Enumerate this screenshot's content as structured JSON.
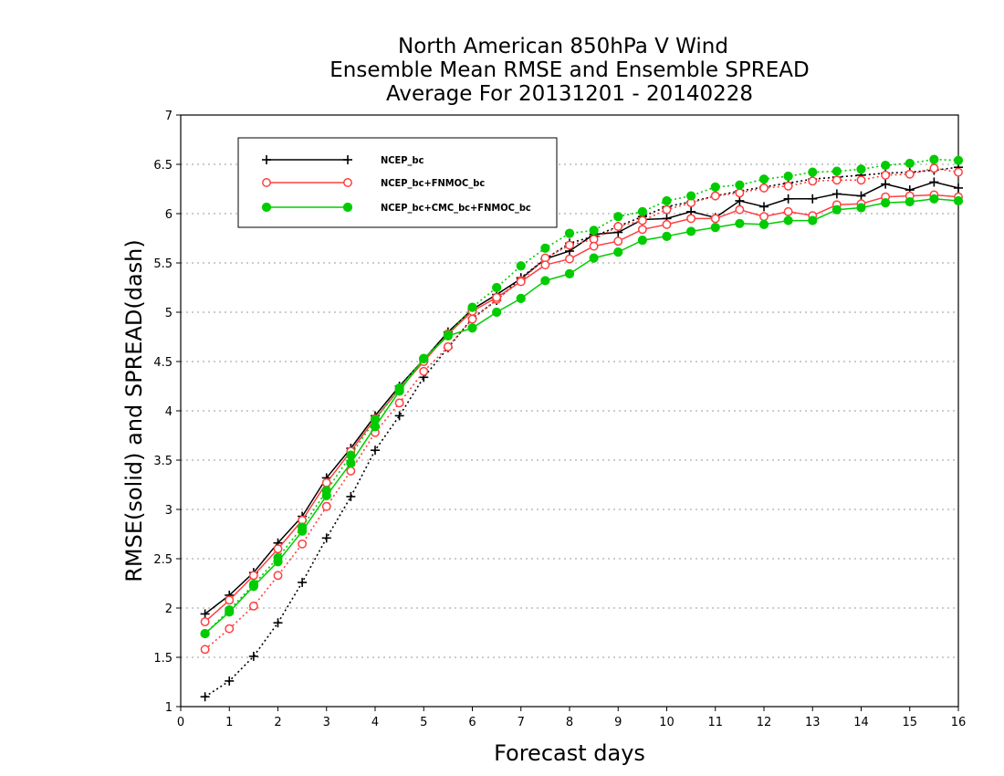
{
  "chart_data": {
    "type": "line",
    "title": [
      "North American 850hPa V Wind",
      "Ensemble Mean RMSE and Ensemble SPREAD",
      "Average For 20131201 - 20140228"
    ],
    "xlabel": "Forecast days",
    "ylabel": "RMSE(solid) and SPREAD(dash)",
    "xlim": [
      0,
      16
    ],
    "ylim": [
      1,
      7
    ],
    "xticks": [
      0,
      1,
      2,
      3,
      4,
      5,
      6,
      7,
      8,
      9,
      10,
      11,
      12,
      13,
      14,
      15,
      16
    ],
    "yticks": [
      1,
      1.5,
      2,
      2.5,
      3,
      3.5,
      4,
      4.5,
      5,
      5.5,
      6,
      6.5,
      7
    ],
    "xtick_labels": [
      "0",
      "1",
      "2",
      "3",
      "4",
      "5",
      "6",
      "7",
      "8",
      "9",
      "10",
      "11",
      "12",
      "13",
      "14",
      "15",
      "16"
    ],
    "ytick_labels": [
      "1",
      "1.5",
      "2",
      "2.5",
      "3",
      "3.5",
      "4",
      "4.5",
      "5",
      "5.5",
      "6",
      "6.5",
      "7"
    ],
    "grid": "horizontal dotted",
    "legend_position": "top-left",
    "x": [
      0.5,
      1,
      1.5,
      2,
      2.5,
      3,
      3.5,
      4,
      4.5,
      5,
      5.5,
      6,
      6.5,
      7,
      7.5,
      8,
      8.5,
      9,
      9.5,
      10,
      10.5,
      11,
      11.5,
      12,
      12.5,
      13,
      13.5,
      14,
      14.5,
      15,
      15.5,
      16
    ],
    "series": [
      {
        "name": "NCEP_bc",
        "color": "#000000",
        "marker": "plus",
        "rmse": [
          1.94,
          2.13,
          2.36,
          2.66,
          2.93,
          3.32,
          3.62,
          3.95,
          4.25,
          4.52,
          4.8,
          5.03,
          5.18,
          5.34,
          5.54,
          5.62,
          5.79,
          5.81,
          5.94,
          5.95,
          6.02,
          5.96,
          6.13,
          6.07,
          6.15,
          6.15,
          6.2,
          6.18,
          6.3,
          6.24,
          6.32,
          6.26
        ],
        "spread": [
          1.1,
          1.26,
          1.51,
          1.85,
          2.26,
          2.71,
          3.13,
          3.6,
          3.95,
          4.34,
          4.64,
          4.94,
          5.12,
          5.35,
          5.54,
          5.7,
          5.77,
          5.87,
          5.97,
          6.07,
          6.12,
          6.18,
          6.23,
          6.27,
          6.31,
          6.35,
          6.37,
          6.39,
          6.41,
          6.42,
          6.44,
          6.47
        ]
      },
      {
        "name": "NCEP_bc+FNMOC_bc",
        "color": "#ff4040",
        "marker": "circle-open",
        "rmse": [
          1.86,
          2.08,
          2.33,
          2.6,
          2.89,
          3.27,
          3.59,
          3.92,
          4.22,
          4.5,
          4.78,
          5.01,
          5.15,
          5.31,
          5.48,
          5.54,
          5.67,
          5.72,
          5.84,
          5.89,
          5.95,
          5.95,
          6.04,
          5.97,
          6.02,
          5.98,
          6.09,
          6.1,
          6.17,
          6.18,
          6.19,
          6.17
        ],
        "spread": [
          1.58,
          1.79,
          2.02,
          2.33,
          2.65,
          3.03,
          3.39,
          3.78,
          4.08,
          4.4,
          4.65,
          4.93,
          5.13,
          5.32,
          5.55,
          5.68,
          5.74,
          5.87,
          5.93,
          6.04,
          6.11,
          6.18,
          6.21,
          6.26,
          6.28,
          6.33,
          6.34,
          6.34,
          6.39,
          6.4,
          6.46,
          6.42
        ]
      },
      {
        "name": "NCEP_bc+CMC_bc+FNMOC_bc",
        "color": "#00cc00",
        "marker": "circle-filled",
        "rmse": [
          1.74,
          1.96,
          2.22,
          2.47,
          2.78,
          3.14,
          3.47,
          3.84,
          4.2,
          4.53,
          4.76,
          4.84,
          5.0,
          5.14,
          5.32,
          5.39,
          5.55,
          5.61,
          5.73,
          5.77,
          5.82,
          5.86,
          5.9,
          5.89,
          5.93,
          5.93,
          6.04,
          6.06,
          6.11,
          6.12,
          6.15,
          6.13
        ],
        "spread": [
          1.74,
          1.98,
          2.24,
          2.51,
          2.82,
          3.19,
          3.55,
          3.91,
          4.23,
          4.53,
          4.77,
          5.05,
          5.25,
          5.47,
          5.65,
          5.8,
          5.83,
          5.97,
          6.02,
          6.13,
          6.18,
          6.27,
          6.29,
          6.35,
          6.38,
          6.42,
          6.43,
          6.45,
          6.49,
          6.51,
          6.55,
          6.54
        ]
      }
    ]
  }
}
